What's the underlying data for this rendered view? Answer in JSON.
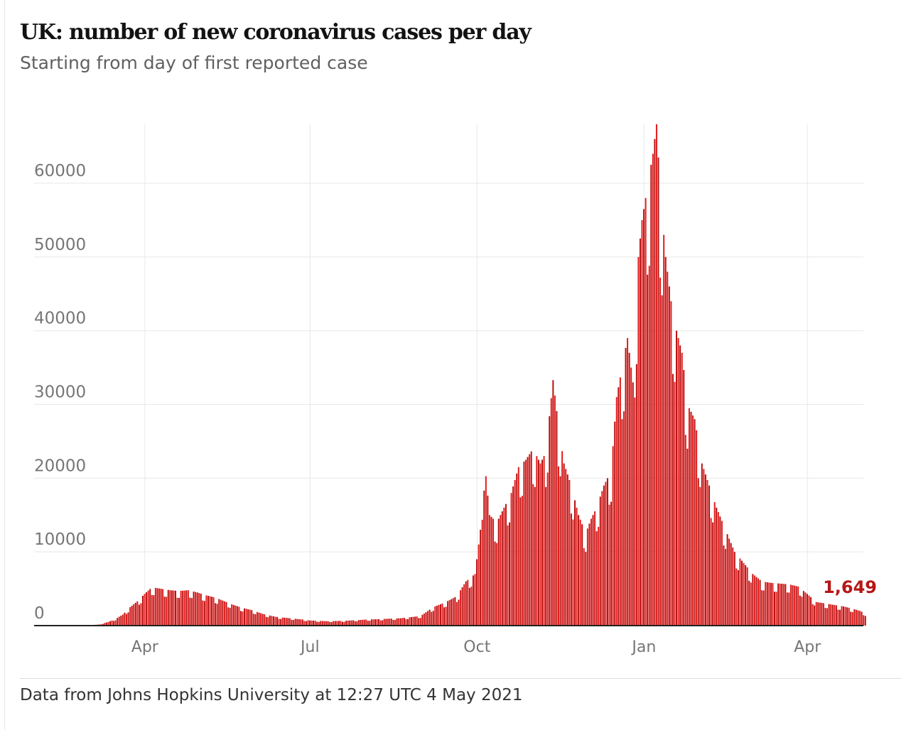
{
  "header": {
    "title": "UK: number of new coronavirus cases per day",
    "subtitle": "Starting from day of first reported case"
  },
  "footer": {
    "source": "Data from Johns Hopkins University at 12:27 UTC 4 May 2021"
  },
  "colors": {
    "bar": "#e31b1b",
    "bar_dark": "#b80f0f",
    "annotation": "#b51616",
    "grid": "#e8e8e8",
    "axis": "#222222",
    "tick_label": "#767676"
  },
  "chart_data": {
    "type": "bar",
    "title": "UK: number of new coronavirus cases per day",
    "subtitle": "Starting from day of first reported case",
    "xlabel": "",
    "ylabel": "",
    "x_range": [
      "2020-01-31",
      "2021-05-03"
    ],
    "ylim": [
      0,
      68000
    ],
    "grid": true,
    "y_ticks": [
      {
        "value": 0,
        "label": "0"
      },
      {
        "value": 10000,
        "label": "10000"
      },
      {
        "value": 20000,
        "label": "20000"
      },
      {
        "value": 30000,
        "label": "30000"
      },
      {
        "value": 40000,
        "label": "40000"
      },
      {
        "value": 50000,
        "label": "50000"
      },
      {
        "value": 60000,
        "label": "60000"
      }
    ],
    "x_ticks": [
      {
        "date": "2020-04-01",
        "label": "Apr"
      },
      {
        "date": "2020-07-01",
        "label": "Jul"
      },
      {
        "date": "2020-10-01",
        "label": "Oct"
      },
      {
        "date": "2021-01-01",
        "label": "Jan"
      },
      {
        "date": "2021-04-01",
        "label": "Apr"
      }
    ],
    "annotation": {
      "date": "2021-05-03",
      "value": 1649,
      "label": "1,649"
    },
    "series": [
      {
        "values": [
          [
            "2020-01-31",
            0
          ],
          [
            "2020-02-28",
            0
          ],
          [
            "2020-03-07",
            150
          ],
          [
            "2020-03-12",
            500
          ],
          [
            "2020-03-16",
            900
          ],
          [
            "2020-03-20",
            1500
          ],
          [
            "2020-03-24",
            2500
          ],
          [
            "2020-03-28",
            3300
          ],
          [
            "2020-04-01",
            4300
          ],
          [
            "2020-04-05",
            5200
          ],
          [
            "2020-04-10",
            5000
          ],
          [
            "2020-04-15",
            4800
          ],
          [
            "2020-04-20",
            4700
          ],
          [
            "2020-04-25",
            4800
          ],
          [
            "2020-04-30",
            4500
          ],
          [
            "2020-05-05",
            4100
          ],
          [
            "2020-05-10",
            3800
          ],
          [
            "2020-05-15",
            3300
          ],
          [
            "2020-05-20",
            2800
          ],
          [
            "2020-05-25",
            2400
          ],
          [
            "2020-05-30",
            2100
          ],
          [
            "2020-06-05",
            1600
          ],
          [
            "2020-06-12",
            1200
          ],
          [
            "2020-06-20",
            1000
          ],
          [
            "2020-06-28",
            800
          ],
          [
            "2020-07-01",
            700
          ],
          [
            "2020-07-10",
            600
          ],
          [
            "2020-07-20",
            650
          ],
          [
            "2020-07-31",
            800
          ],
          [
            "2020-08-10",
            900
          ],
          [
            "2020-08-20",
            1000
          ],
          [
            "2020-08-31",
            1300
          ],
          [
            "2020-09-07",
            2500
          ],
          [
            "2020-09-14",
            3200
          ],
          [
            "2020-09-20",
            4000
          ],
          [
            "2020-09-25",
            6000
          ],
          [
            "2020-09-30",
            7000
          ],
          [
            "2020-10-03",
            13000
          ],
          [
            "2020-10-05",
            22900
          ],
          [
            "2020-10-08",
            15000
          ],
          [
            "2020-10-12",
            14000
          ],
          [
            "2020-10-16",
            16000
          ],
          [
            "2020-10-20",
            18000
          ],
          [
            "2020-10-24",
            21500
          ],
          [
            "2020-10-28",
            22500
          ],
          [
            "2020-11-01",
            24000
          ],
          [
            "2020-11-05",
            22000
          ],
          [
            "2020-11-08",
            23500
          ],
          [
            "2020-11-12",
            33300
          ],
          [
            "2020-11-15",
            27000
          ],
          [
            "2020-11-18",
            22000
          ],
          [
            "2020-11-22",
            19000
          ],
          [
            "2020-11-26",
            15000
          ],
          [
            "2020-11-30",
            12500
          ],
          [
            "2020-12-03",
            14500
          ],
          [
            "2020-12-06",
            16000
          ],
          [
            "2020-12-10",
            19000
          ],
          [
            "2020-12-14",
            21000
          ],
          [
            "2020-12-17",
            31000
          ],
          [
            "2020-12-20",
            35000
          ],
          [
            "2020-12-23",
            39000
          ],
          [
            "2020-12-26",
            33000
          ],
          [
            "2020-12-29",
            50000
          ],
          [
            "2020-12-31",
            55000
          ],
          [
            "2021-01-02",
            58000
          ],
          [
            "2021-01-04",
            61000
          ],
          [
            "2021-01-06",
            64000
          ],
          [
            "2021-01-08",
            68000
          ],
          [
            "2021-01-10",
            59000
          ],
          [
            "2021-01-13",
            50000
          ],
          [
            "2021-01-16",
            44000
          ],
          [
            "2021-01-19",
            40000
          ],
          [
            "2021-01-22",
            37000
          ],
          [
            "2021-01-25",
            30000
          ],
          [
            "2021-01-29",
            28000
          ],
          [
            "2021-02-02",
            22000
          ],
          [
            "2021-02-06",
            19000
          ],
          [
            "2021-02-10",
            16000
          ],
          [
            "2021-02-15",
            13000
          ],
          [
            "2021-02-20",
            10000
          ],
          [
            "2021-02-25",
            8500
          ],
          [
            "2021-03-02",
            7000
          ],
          [
            "2021-03-07",
            6000
          ],
          [
            "2021-03-12",
            5800
          ],
          [
            "2021-03-17",
            5700
          ],
          [
            "2021-03-22",
            5600
          ],
          [
            "2021-03-27",
            5300
          ],
          [
            "2021-04-01",
            4300
          ],
          [
            "2021-04-06",
            3200
          ],
          [
            "2021-04-11",
            3000
          ],
          [
            "2021-04-16",
            2800
          ],
          [
            "2021-04-21",
            2600
          ],
          [
            "2021-04-26",
            2300
          ],
          [
            "2021-04-30",
            2000
          ],
          [
            "2021-05-03",
            1649
          ]
        ]
      }
    ]
  }
}
